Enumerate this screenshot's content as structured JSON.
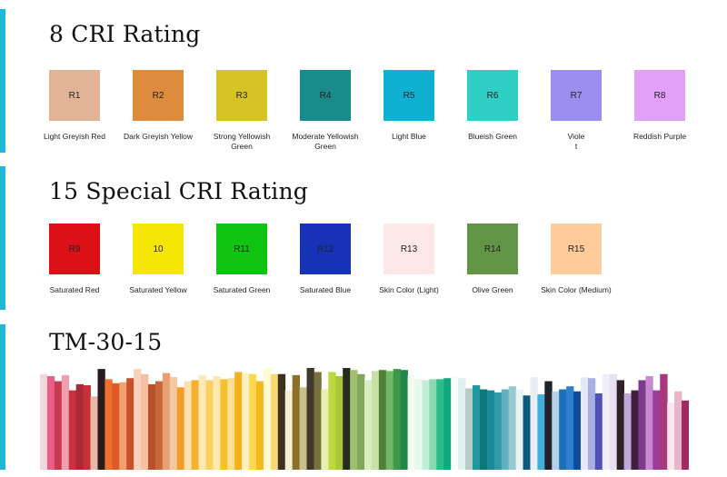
{
  "sections": {
    "cri8": {
      "title": "8 CRI Rating",
      "swatches": [
        {
          "code": "R1",
          "name": "Light Greyish Red",
          "color": "#e1b498"
        },
        {
          "code": "R2",
          "name": "Dark Greyish Yellow",
          "color": "#dc8c3c"
        },
        {
          "code": "R3",
          "name": "Strong Yellowish Green",
          "color": "#d5c423"
        },
        {
          "code": "R4",
          "name": "Moderate Yellowish Green",
          "color": "#1a8b8b"
        },
        {
          "code": "R5",
          "name": "Light Blue",
          "color": "#0eb1d2"
        },
        {
          "code": "R6",
          "name": "Blueish Green",
          "color": "#2fcfc6"
        },
        {
          "code": "R7",
          "name": "Viole\nt",
          "color": "#9a8ff0"
        },
        {
          "code": "R8",
          "name": "Reddish Purple",
          "color": "#e2a0fb"
        }
      ]
    },
    "cri15": {
      "title": "15 Special CRI Rating",
      "swatches": [
        {
          "code": "R9",
          "name": "Saturated Red",
          "color": "#db1117"
        },
        {
          "code": "10",
          "name": "Saturated Yellow",
          "color": "#f6e606"
        },
        {
          "code": "R11",
          "name": "Saturated Green",
          "color": "#0ec411"
        },
        {
          "code": "R12",
          "name": "Saturated Blue",
          "color": "#1633b7"
        },
        {
          "code": "R13",
          "name": "Skin Color (Light)",
          "color": "#fde8e8"
        },
        {
          "code": "R14",
          "name": "Olive Green",
          "color": "#629446"
        },
        {
          "code": "R15",
          "name": "Skin Color (Medium)",
          "color": "#fecb99"
        }
      ]
    },
    "tm30": {
      "title": "TM-30-15",
      "bars": [
        {
          "color": "#f2d8dc",
          "level": 0.94
        },
        {
          "color": "#e8608a",
          "level": 0.92
        },
        {
          "color": "#c93a4e",
          "level": 0.87
        },
        {
          "color": "#f0a0b0",
          "level": 0.93
        },
        {
          "color": "#c8323c",
          "level": 0.78
        },
        {
          "color": "#a82a38",
          "level": 0.84
        },
        {
          "color": "#c83038",
          "level": 0.83
        },
        {
          "color": "#e8b8a8",
          "level": 0.72
        },
        {
          "color": "#2a1c1c",
          "level": 0.99
        },
        {
          "color": "#f07030",
          "level": 0.89
        },
        {
          "color": "#e05a28",
          "level": 0.85
        },
        {
          "color": "#f4a070",
          "level": 0.86
        },
        {
          "color": "#c8502a",
          "level": 0.9
        },
        {
          "color": "#f6d2bc",
          "level": 0.99
        },
        {
          "color": "#f4c0a0",
          "level": 0.94
        },
        {
          "color": "#b8502c",
          "level": 0.84
        },
        {
          "color": "#c86838",
          "level": 0.87
        },
        {
          "color": "#e8a070",
          "level": 0.95
        },
        {
          "color": "#f4c8a0",
          "level": 0.91
        },
        {
          "color": "#f49a28",
          "level": 0.81
        },
        {
          "color": "#fde0b0",
          "level": 0.87
        },
        {
          "color": "#f6b030",
          "level": 0.88
        },
        {
          "color": "#ffe8b8",
          "level": 0.93
        },
        {
          "color": "#fbd060",
          "level": 0.88
        },
        {
          "color": "#fde8b0",
          "level": 0.92
        },
        {
          "color": "#f6c030",
          "level": 0.89
        },
        {
          "color": "#fbe090",
          "level": 0.9
        },
        {
          "color": "#f4b020",
          "level": 0.96
        },
        {
          "color": "#fdf0c0",
          "level": 0.95
        },
        {
          "color": "#ffd850",
          "level": 0.94
        },
        {
          "color": "#f6b820",
          "level": 0.87
        },
        {
          "color": "#fffad0",
          "level": 0.99
        },
        {
          "color": "#f8d870",
          "level": 0.94
        },
        {
          "color": "#3c3020",
          "level": 0.94
        },
        {
          "color": "#f6eed0",
          "level": 0.78
        },
        {
          "color": "#8c7028",
          "level": 0.93
        },
        {
          "color": "#c8c088",
          "level": 0.81
        },
        {
          "color": "#40382a",
          "level": 1.0
        },
        {
          "color": "#787040",
          "level": 0.96
        },
        {
          "color": "#e8f0b0",
          "level": 0.79
        },
        {
          "color": "#c0d840",
          "level": 0.96
        },
        {
          "color": "#a8c838",
          "level": 0.92
        },
        {
          "color": "#282c20",
          "level": 1.0
        },
        {
          "color": "#a0c070",
          "level": 0.98
        },
        {
          "color": "#80a858",
          "level": 0.94
        },
        {
          "color": "#d8ecc0",
          "level": 0.88
        },
        {
          "color": "#c8e0a8",
          "level": 0.97
        },
        {
          "color": "#508038",
          "level": 0.98
        },
        {
          "color": "#70b868",
          "level": 0.97
        },
        {
          "color": "#409848",
          "level": 0.99
        },
        {
          "color": "#208848",
          "level": 0.98
        },
        {
          "color": "#f4fcf2",
          "level": 0.93
        },
        {
          "color": "#e8f8ec",
          "level": 0.89
        },
        {
          "color": "#c0ecd8",
          "level": 0.88
        },
        {
          "color": "#88d8b0",
          "level": 0.89
        },
        {
          "color": "#2cbc88",
          "level": 0.89
        },
        {
          "color": "#10a880",
          "level": 0.9
        },
        {
          "color": "#f8fcfa",
          "level": 0.92
        },
        {
          "color": "#e0f0ee",
          "level": 0.9
        },
        {
          "color": "#b8ccc6",
          "level": 0.8
        },
        {
          "color": "#209aa0",
          "level": 0.83
        },
        {
          "color": "#107878",
          "level": 0.79
        },
        {
          "color": "#1a8a98",
          "level": 0.78
        },
        {
          "color": "#309aa8",
          "level": 0.76
        },
        {
          "color": "#60b0c0",
          "level": 0.79
        },
        {
          "color": "#98c8d0",
          "level": 0.82
        },
        {
          "color": "#e8f4f4",
          "level": 0.79
        },
        {
          "color": "#105a80",
          "level": 0.73
        },
        {
          "color": "#e8eef2",
          "level": 0.91
        },
        {
          "color": "#40b0d8",
          "level": 0.74
        },
        {
          "color": "#202428",
          "level": 0.87
        },
        {
          "color": "#b8d0e8",
          "level": 0.77
        },
        {
          "color": "#1c70b8",
          "level": 0.79
        },
        {
          "color": "#3080d0",
          "level": 0.82
        },
        {
          "color": "#0c4c9c",
          "level": 0.77
        },
        {
          "color": "#e8e8f4",
          "level": 0.91
        },
        {
          "color": "#a8b0e0",
          "level": 0.9
        },
        {
          "color": "#5050b8",
          "level": 0.75
        },
        {
          "color": "#eef0f8",
          "level": 0.94
        },
        {
          "color": "#e8e0f0",
          "level": 0.94
        },
        {
          "color": "#302028",
          "level": 0.88
        },
        {
          "color": "#c0a8d8",
          "level": 0.75
        },
        {
          "color": "#402040",
          "level": 0.78
        },
        {
          "color": "#7c3c8c",
          "level": 0.88
        },
        {
          "color": "#c888d0",
          "level": 0.92
        },
        {
          "color": "#9a3c98",
          "level": 0.78
        },
        {
          "color": "#a8387c",
          "level": 0.94
        },
        {
          "color": "#fce8ee",
          "level": 0.66
        },
        {
          "color": "#e8b4c8",
          "level": 0.77
        },
        {
          "color": "#a02a60",
          "level": 0.68
        }
      ]
    }
  }
}
